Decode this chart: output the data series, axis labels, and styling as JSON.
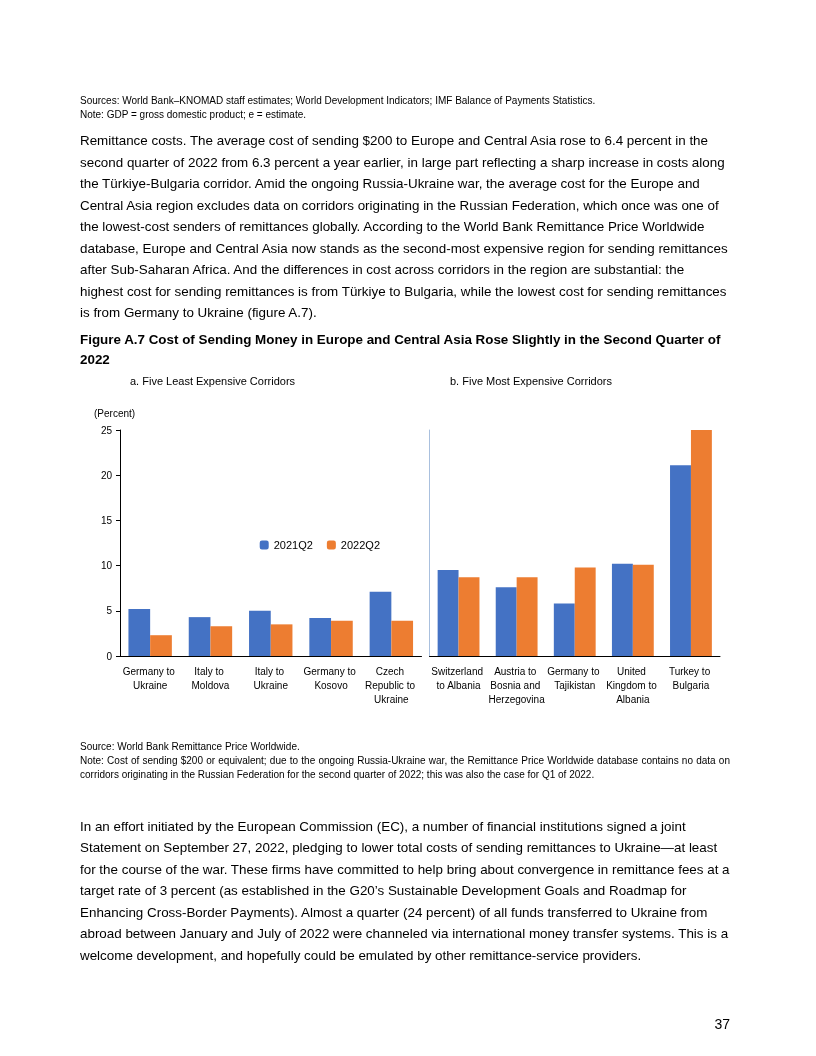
{
  "chart_data": [
    {
      "type": "bar",
      "title": "Figure A.7 Cost of Sending Money in Europe and Central Asia Rose Slightly in the Second Quarter of 2022",
      "subtitle": "a. Five Least Expensive Corridors",
      "ylabel": "(Percent)",
      "categories": [
        "Germany to Ukraine",
        "Italy to Moldova",
        "Italy to Ukraine",
        "Germany to Kosovo",
        "Czech Republic to Ukraine"
      ],
      "series": [
        {
          "name": "2021Q2",
          "color": "#4472c4",
          "values": [
            5.2,
            4.3,
            5.0,
            4.2,
            7.1
          ]
        },
        {
          "name": "2022Q2",
          "color": "#ed7d31",
          "values": [
            2.3,
            3.3,
            3.5,
            3.9,
            3.9
          ]
        }
      ],
      "ylim": [
        0,
        25
      ],
      "yticks": [
        0,
        5,
        10,
        15,
        20,
        25
      ],
      "grid": false,
      "legend": "right",
      "annotations": [
        "Sources: World Bank–KNOMAD staff estimates; World Development Indicators; IMF Balance of Payments Statistics.",
        "Note: GDP = gross domestic product; e = estimate.",
        "Remittance costs. The average cost of sending $200 to Europe and Central Asia rose to 6.4 percent in the second quarter of 2022 from 6.3 percent a year earlier, in large part reflecting a sharp increase in costs along the Türkiye-Bulgaria corridor. Amid the ongoing Russia-Ukraine war, the average cost for the Europe and Central Asia region excludes data on corridors originating in the Russian Federation, which once was one of the lowest-cost senders of remittances globally. According to the World Bank Remittance Price Worldwide database, Europe and Central Asia now stands as the second-most expensive region for sending remittances after Sub-Saharan Africa. And the differences in cost across corridors in the region are substantial: the highest cost for sending remittances is from Türkiye to Bulgaria, while the lowest cost for sending remittances is from Germany to Ukraine (figure A.7).",
        "Source: World Bank Remittance Price Worldwide.",
        "Note: Cost of sending $200 or equivalent; due to the ongoing Russia-Ukraine war, the Remittance Price Worldwide database contains no data on corridors originating in the Russian Federation for the second quarter of 2022; this was also the case for Q1 of 2022.",
        "In an effort initiated by the European Commission (EC), a number of financial institutions signed a joint Statement on September 27, 2022, pledging to lower total costs of sending remittances to Ukraine—at least for the course of the war. These firms have committed to help bring about convergence in remittance fees at a target rate of 3 percent (as established in the G20’s Sustainable Development Goals and Roadmap for Enhancing Cross-Border Payments). Almost a quarter (24 percent) of all funds transferred to Ukraine from abroad between January and July of 2022 were channeled via international money transfer systems. This is a welcome development, and hopefully could be emulated by other remittance-service providers.",
        "37"
      ]
    },
    {
      "type": "bar",
      "subtitle": "b. Five Most Expensive Corridors",
      "categories": [
        "Switzerland to Albania",
        "Austria to Bosnia and Herzegovina",
        "Germany to Tajikistan",
        "United Kingdom to Albania",
        "Turkey to Bulgaria"
      ],
      "series": [
        {
          "color": "#4472c4",
          "values": [
            9.5,
            7.6,
            5.8,
            10.2,
            21.1
          ]
        },
        {
          "color": "#ed7d31",
          "values": [
            8.7,
            8.7,
            9.8,
            10.1,
            25.0
          ]
        }
      ],
      "ylim": [
        0,
        25
      ],
      "yticks": [
        0,
        5,
        10,
        15,
        20,
        25
      ],
      "grid": false,
      "tick_labels": "x"
    }
  ]
}
